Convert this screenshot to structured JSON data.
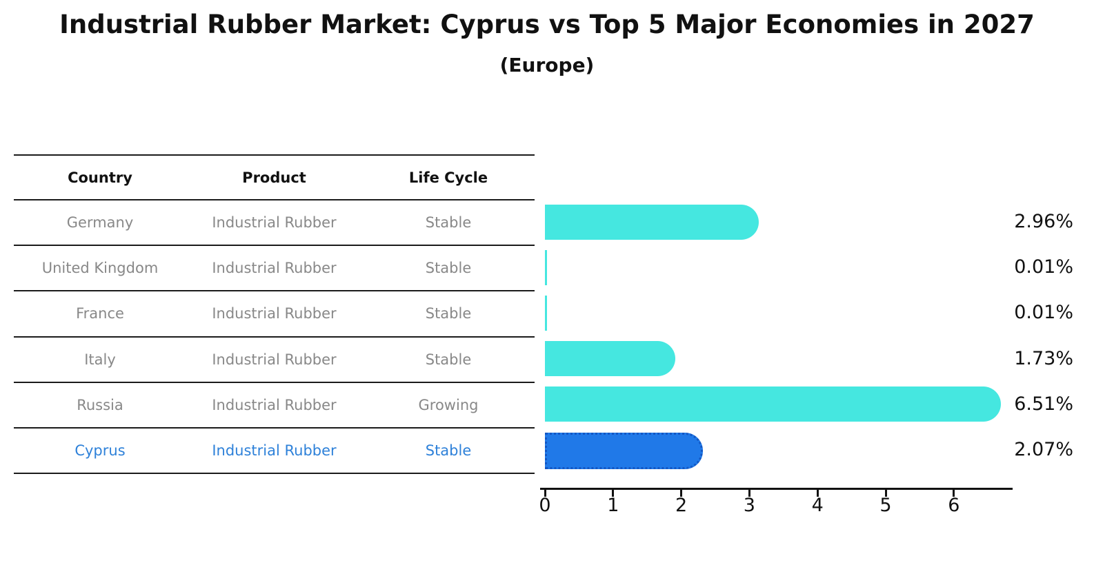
{
  "title": "Industrial Rubber Market: Cyprus vs Top 5 Major Economies in 2027",
  "subtitle": "(Europe)",
  "table": {
    "headers": [
      "Country",
      "Product",
      "Life Cycle"
    ],
    "rows": [
      {
        "country": "Germany",
        "product": "Industrial Rubber",
        "life_cycle": "Stable",
        "highlight": false
      },
      {
        "country": "United Kingdom",
        "product": "Industrial Rubber",
        "life_cycle": "Stable",
        "highlight": false
      },
      {
        "country": "France",
        "product": "Industrial Rubber",
        "life_cycle": "Stable",
        "highlight": false
      },
      {
        "country": "Italy",
        "product": "Industrial Rubber",
        "life_cycle": "Stable",
        "highlight": false
      },
      {
        "country": "Russia",
        "product": "Industrial Rubber",
        "life_cycle": "Growing",
        "highlight": false
      },
      {
        "country": "Cyprus",
        "product": "Industrial Rubber",
        "life_cycle": "Stable",
        "highlight": true
      }
    ]
  },
  "chart_data": {
    "type": "bar",
    "orientation": "horizontal",
    "title": "Industrial Rubber Market: Cyprus vs Top 5 Major Economies in 2027",
    "subtitle": "(Europe)",
    "categories": [
      "Germany",
      "United Kingdom",
      "France",
      "Italy",
      "Russia",
      "Cyprus"
    ],
    "values": [
      2.96,
      0.01,
      0.01,
      1.73,
      6.51,
      2.07
    ],
    "value_labels": [
      "2.96%",
      "0.01%",
      "0.01%",
      "1.73%",
      "6.51%",
      "2.07%"
    ],
    "xticks": [
      "0",
      "1",
      "2",
      "3",
      "4",
      "5",
      "6"
    ],
    "xlim": [
      0,
      6.9
    ],
    "grid": false,
    "legend_position": "none",
    "highlight_index": 5
  },
  "colors": {
    "bar_default": "#45E7E0",
    "bar_highlight": "#2079E8",
    "bar_highlight_border": "#1357C4",
    "highlight_text": "#2E81D9",
    "row_text": "#888888",
    "header_text": "#111111",
    "axis": "#111111"
  }
}
